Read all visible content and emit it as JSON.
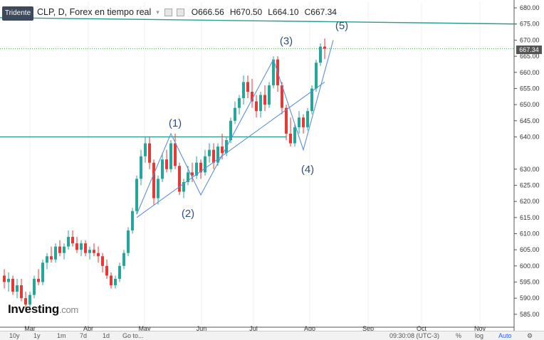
{
  "toolbar": {
    "template_label": "Tridente"
  },
  "legend": {
    "symbol": "CLP, D, Forex en tiempo real",
    "open": "O666.56",
    "high": "H670.50",
    "low": "L664.10",
    "close": "C667.34"
  },
  "price_badge": "667.34",
  "logo": {
    "main": "Investing",
    "suffix": ".com"
  },
  "bottom_bar": {
    "ranges": [
      "10y",
      "1y",
      "1m",
      "7d",
      "1d"
    ],
    "goto": "Go to...",
    "time": "09:30:08 (UTC-3)",
    "pct": "%",
    "log": "log",
    "auto": "Auto"
  },
  "colors": {
    "up": "#26a69a",
    "down": "#e53935",
    "teal_line": "#2a9d8f",
    "blue_line": "#5b8fd6",
    "dotted": "#4caf50"
  },
  "chart_data": {
    "type": "candlestick",
    "ylim": [
      581,
      682
    ],
    "y_ticks": [
      585,
      590,
      595,
      600,
      605,
      610,
      615,
      620,
      625,
      630,
      640,
      645,
      650,
      655,
      660,
      665,
      670,
      675,
      680
    ],
    "y_tick_labels": [
      "585.00",
      "590.00",
      "595.00",
      "600.00",
      "605.00",
      "610.00",
      "615.00",
      "620.00",
      "625.00",
      "630.00",
      "640.00",
      "645.00",
      "650.00",
      "655.00",
      "660.00",
      "665.00",
      "670.00",
      "675.00",
      "680.00"
    ],
    "x_labels": [
      "Mar",
      "Abr",
      "May",
      "Jun",
      "Jul",
      "Ago",
      "Sep",
      "Oct",
      "Nov"
    ],
    "last_close": 667.34,
    "wave_labels": [
      {
        "text": "(1)",
        "price": 641
      },
      {
        "text": "(2)",
        "price": 620
      },
      {
        "text": "(3)",
        "price": 666
      },
      {
        "text": "(4)",
        "price": 635
      },
      {
        "text": "(5)",
        "price": 671
      }
    ],
    "ohlc": [
      [
        597,
        599,
        593,
        595
      ],
      [
        595,
        598,
        592,
        596
      ],
      [
        596,
        597,
        591,
        592
      ],
      [
        592,
        596,
        590,
        594
      ],
      [
        594,
        596,
        589,
        590
      ],
      [
        590,
        592,
        587,
        588
      ],
      [
        588,
        592,
        587,
        591
      ],
      [
        591,
        597,
        590,
        596
      ],
      [
        596,
        599,
        594,
        595
      ],
      [
        595,
        602,
        594,
        601
      ],
      [
        601,
        604,
        599,
        603
      ],
      [
        603,
        606,
        601,
        602
      ],
      [
        602,
        607,
        601,
        606
      ],
      [
        606,
        608,
        603,
        604
      ],
      [
        604,
        607,
        602,
        606
      ],
      [
        606,
        611,
        605,
        609
      ],
      [
        609,
        611,
        606,
        607
      ],
      [
        607,
        609,
        604,
        605
      ],
      [
        605,
        608,
        603,
        607
      ],
      [
        607,
        608,
        603,
        604
      ],
      [
        604,
        606,
        602,
        605
      ],
      [
        605,
        607,
        603,
        604
      ],
      [
        604,
        606,
        601,
        603
      ],
      [
        603,
        604,
        598,
        600
      ],
      [
        600,
        602,
        596,
        597
      ],
      [
        597,
        598,
        593,
        594
      ],
      [
        594,
        597,
        593,
        596
      ],
      [
        596,
        601,
        595,
        600
      ],
      [
        600,
        605,
        599,
        604
      ],
      [
        604,
        612,
        603,
        611
      ],
      [
        611,
        618,
        610,
        617
      ],
      [
        617,
        628,
        616,
        627
      ],
      [
        627,
        636,
        625,
        634
      ],
      [
        634,
        640,
        632,
        638
      ],
      [
        638,
        640,
        630,
        632
      ],
      [
        632,
        633,
        619,
        621
      ],
      [
        621,
        628,
        619,
        627
      ],
      [
        627,
        635,
        626,
        633
      ],
      [
        633,
        636,
        629,
        630
      ],
      [
        630,
        639,
        629,
        638
      ],
      [
        638,
        641,
        630,
        631
      ],
      [
        631,
        632,
        622,
        623
      ],
      [
        623,
        627,
        621,
        626
      ],
      [
        626,
        631,
        625,
        629
      ],
      [
        629,
        632,
        626,
        628
      ],
      [
        628,
        634,
        627,
        632
      ],
      [
        632,
        633,
        627,
        629
      ],
      [
        629,
        636,
        628,
        634
      ],
      [
        634,
        638,
        632,
        636
      ],
      [
        636,
        638,
        630,
        632
      ],
      [
        632,
        638,
        631,
        637
      ],
      [
        637,
        641,
        633,
        635
      ],
      [
        635,
        640,
        634,
        639
      ],
      [
        639,
        646,
        638,
        645
      ],
      [
        645,
        651,
        644,
        649
      ],
      [
        649,
        653,
        647,
        652
      ],
      [
        652,
        659,
        650,
        657
      ],
      [
        657,
        659,
        652,
        654
      ],
      [
        654,
        658,
        649,
        651
      ],
      [
        651,
        653,
        646,
        648
      ],
      [
        648,
        654,
        646,
        653
      ],
      [
        653,
        656,
        648,
        650
      ],
      [
        650,
        657,
        649,
        656
      ],
      [
        656,
        665,
        655,
        664
      ],
      [
        664,
        665,
        654,
        656
      ],
      [
        656,
        657,
        647,
        649
      ],
      [
        649,
        650,
        639,
        641
      ],
      [
        641,
        646,
        637,
        638
      ],
      [
        638,
        644,
        637,
        643
      ],
      [
        643,
        648,
        641,
        646
      ],
      [
        646,
        647,
        641,
        643
      ],
      [
        643,
        649,
        642,
        648
      ],
      [
        648,
        656,
        647,
        655
      ],
      [
        655,
        664,
        654,
        663
      ],
      [
        663,
        669,
        662,
        668
      ],
      [
        668,
        670.5,
        664.1,
        667.34
      ]
    ],
    "teal_lines": [
      {
        "from_index": -3,
        "from_price": 677,
        "to_index": 120,
        "to_price": 675
      },
      {
        "from_index": -3,
        "from_price": 640,
        "to_index": 66,
        "to_price": 640
      }
    ],
    "blue_lines": [
      {
        "points": [
          [
            31,
            616
          ],
          [
            39,
            641
          ],
          [
            46,
            622
          ],
          [
            63,
            664
          ],
          [
            70,
            636
          ],
          [
            77,
            670
          ]
        ]
      },
      {
        "points": [
          [
            31,
            615
          ],
          [
            75,
            657
          ]
        ]
      }
    ]
  }
}
